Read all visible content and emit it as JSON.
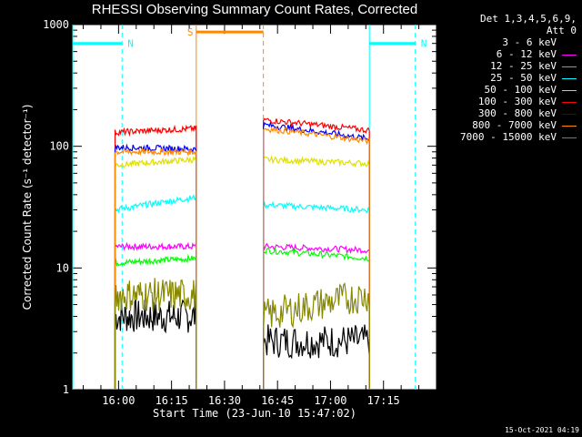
{
  "chart_data": {
    "type": "line",
    "title": "RHESSI Observing Summary Count Rates, Corrected",
    "xlabel": "Start Time (23-Jun-10 15:47:02)",
    "ylabel": "Corrected Count Rate (s⁻¹ detector⁻¹)",
    "yscale": "log",
    "ylim": [
      1,
      1000
    ],
    "xlim": [
      "15:47:02",
      "17:30:00"
    ],
    "x_ticks": [
      "16:00",
      "16:15",
      "16:30",
      "16:45",
      "17:00",
      "17:15"
    ],
    "y_ticks": [
      "1",
      "10",
      "100",
      "1000"
    ],
    "legend_header": [
      "Det 1,3,4,5,6,9,",
      "Att 0"
    ],
    "legend_position": "right",
    "segments": [
      {
        "start": "15:59",
        "end": "16:22"
      },
      {
        "start": "16:41",
        "end": "17:11"
      }
    ],
    "series": [
      {
        "name": "3 - 6 keV",
        "color": "#000000",
        "seg1": [
          4,
          4
        ],
        "seg2": [
          2.5,
          2.5
        ]
      },
      {
        "name": "6 - 12 keV",
        "color": "#ff00ff",
        "seg1": [
          15,
          15
        ],
        "seg2": [
          15,
          14
        ]
      },
      {
        "name": "12 - 25 keV",
        "color": "#00ff00",
        "seg1": [
          11,
          12
        ],
        "seg2": [
          14,
          12
        ]
      },
      {
        "name": "25 - 50 keV",
        "color": "#00ffff",
        "seg1": [
          30,
          38
        ],
        "seg2": [
          33,
          30
        ]
      },
      {
        "name": "50 - 100 keV",
        "color": "#e0e000",
        "seg1": [
          70,
          78
        ],
        "seg2": [
          78,
          72
        ]
      },
      {
        "name": "100 - 300 keV",
        "color": "#ff0000",
        "seg1": [
          130,
          140
        ],
        "seg2": [
          165,
          135
        ]
      },
      {
        "name": "300 - 800 keV",
        "color": "#0000ff",
        "seg1": [
          98,
          95
        ],
        "seg2": [
          150,
          115
        ]
      },
      {
        "name": "800 - 7000 keV",
        "color": "#ff8800",
        "seg1": [
          90,
          90
        ],
        "seg2": [
          140,
          110
        ]
      },
      {
        "name": "7000 - 15000 keV",
        "color": "#888800",
        "seg1": [
          6,
          6
        ],
        "seg2": [
          4,
          6
        ]
      }
    ],
    "annotations": [
      {
        "label": "N",
        "color": "#00ffff",
        "start": "15:47:02",
        "end": "16:01",
        "y": 700,
        "solid_x": "15:47:02",
        "dashed_x": "16:01"
      },
      {
        "label": "N",
        "color": "#00ffff",
        "start": "17:11",
        "end": "17:24",
        "y": 700,
        "solid_x": "17:11",
        "dashed_x": "17:24"
      },
      {
        "label": "S",
        "color": "#ff8800",
        "start": "16:22",
        "end": "16:41",
        "y": 870,
        "solid_x": "16:22",
        "dashed_x": "16:41"
      }
    ]
  },
  "timestamp": "15-Oct-2021 04:19"
}
